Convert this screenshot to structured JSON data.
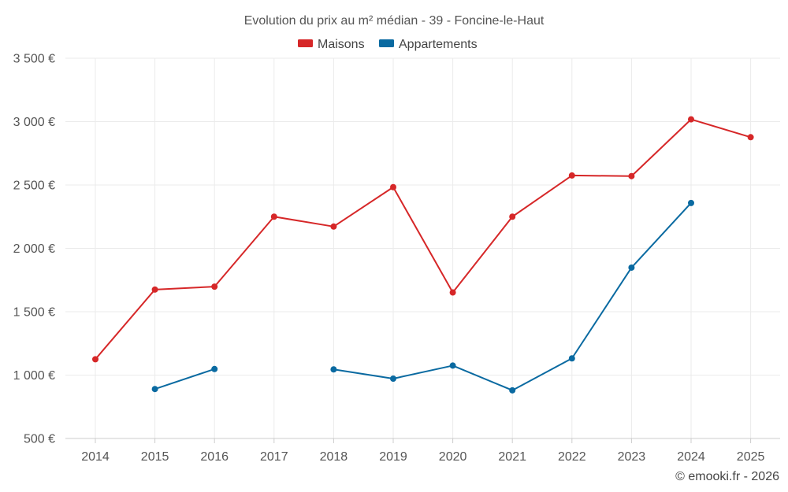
{
  "chart_data": {
    "type": "line",
    "title": "Evolution du prix au m² médian - 39 - Foncine-le-Haut",
    "categories": [
      "2014",
      "2015",
      "2016",
      "2017",
      "2018",
      "2019",
      "2020",
      "2021",
      "2022",
      "2023",
      "2024",
      "2025"
    ],
    "series": [
      {
        "name": "Maisons",
        "color": "#d62728",
        "values": [
          1125,
          1675,
          1698,
          2250,
          2172,
          2483,
          1652,
          2250,
          2575,
          2570,
          3018,
          2877
        ]
      },
      {
        "name": "Appartements",
        "color": "#0a6aa1",
        "values": [
          null,
          890,
          1048,
          null,
          1045,
          972,
          1075,
          880,
          1132,
          1848,
          2358,
          null
        ]
      }
    ],
    "y_ticks": [
      {
        "value": 500,
        "label": "500 €"
      },
      {
        "value": 1000,
        "label": "1 000 €"
      },
      {
        "value": 1500,
        "label": "1 500 €"
      },
      {
        "value": 2000,
        "label": "2 000 €"
      },
      {
        "value": 2500,
        "label": "2 500 €"
      },
      {
        "value": 3000,
        "label": "3 000 €"
      },
      {
        "value": 3500,
        "label": "3 500 €"
      }
    ],
    "ylim": [
      500,
      3500
    ],
    "xlabel": "",
    "ylabel": "",
    "legend_position": "top-center",
    "grid": true
  },
  "credit": "© emooki.fr - 2026"
}
